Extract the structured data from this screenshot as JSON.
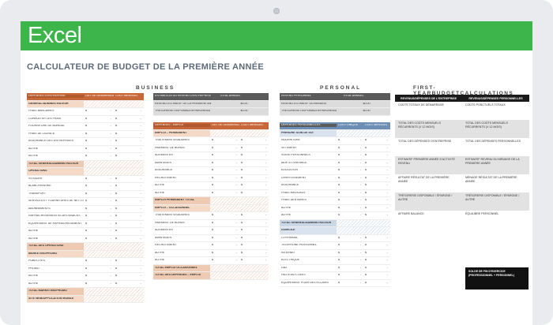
{
  "app": {
    "name": "Excel"
  },
  "sheet": {
    "title": "CALCULATEUR DE BUDGET DE LA PREMIÈRE ANNÉE",
    "business": "BUSINESS",
    "personal": "PERSONAL",
    "calc": "FIRST-YEARBUDGETCALCULATIONS"
  },
  "business": {
    "headers": [
      "DÉPENSES D'ENTREPRISE",
      "OÛT DE DÉMARRAGE",
      "COÛT MENSUEL"
    ],
    "rows": [
      {
        "t": "sub",
        "label": "GÉNÉRAL/ADMINISTRATEUR"
      },
      {
        "t": "v",
        "label": "FRAIS BANCAIRES"
      },
      {
        "t": "v",
        "label": "CONSULTER LES FRAIS"
      },
      {
        "t": "v",
        "label": "FOURNITURE DE BUREAU"
      },
      {
        "t": "v",
        "label": "FRAIS DE LICENCE"
      },
      {
        "t": "v",
        "label": "ASSURANCE DES ENTREPRISES"
      },
      {
        "t": "v",
        "label": "AUTRE"
      },
      {
        "t": "v",
        "label": "AUTRE"
      },
      {
        "t": "tot",
        "label": "TOTAL GÉNÉRAL/ADMINISTRATEUR"
      },
      {
        "t": "sub",
        "label": "OPÉRATIONS"
      },
      {
        "t": "v",
        "label": "VOYAGER"
      },
      {
        "t": "v",
        "label": "BLANCHISSERIE"
      },
      {
        "t": "v",
        "label": "TRANSPORT"
      },
      {
        "t": "v",
        "label": "SERVICES ET FOURNITURES DE NETTOY"
      },
      {
        "t": "v",
        "label": "ABONNEMENTS"
      },
      {
        "t": "v",
        "label": "RAFRAÎCHISSEMENTS/CAFÉ/SNACKS"
      },
      {
        "t": "v",
        "label": "ÉQUIPEMENT DE RAFRAÎCHISSEMENT"
      },
      {
        "t": "v",
        "label": "AUTRE"
      },
      {
        "t": "v",
        "label": "AUTRE"
      },
      {
        "t": "tot",
        "label": "TOTAL DES OPÉRATIONS"
      },
      {
        "t": "sub",
        "label": "MARKETING/PROMO"
      },
      {
        "t": "v",
        "label": "PUBLICITÉS"
      },
      {
        "t": "v",
        "label": "PROMO"
      },
      {
        "t": "v",
        "label": "AUTRE"
      },
      {
        "t": "v",
        "label": "AUTRE"
      },
      {
        "t": "tot",
        "label": "TOTAL MARKETING/PROMO"
      },
      {
        "t": "sub",
        "label": "SITE WEB/APPLICATION MOBILE"
      }
    ]
  },
  "revenue": {
    "headers": [
      "ESTIMATION DU REVENU D'ENTREPRISE",
      "TOTAL ANNUEL"
    ],
    "rows": [
      [
        "REVENU ESTIMATIF DE LA PREMIÈRE AN",
        "$0.00"
      ],
      [
        "TRÉSORERIE DISPONIBLE/ÉPARGNE/AU",
        "$0.00"
      ]
    ]
  },
  "emploi": {
    "headers": [
      "DÉPENSES - EMPLOI",
      "OÛT DE DÉMARRAG",
      "COÛT MENSUEL"
    ],
    "rows": [
      {
        "t": "sub",
        "label": "EMPLOI – PERMANENT"
      },
      {
        "t": "v",
        "label": "TRAITEMENTS/SALAIRES"
      },
      {
        "t": "v",
        "label": "PAIEMENT DE BONUS"
      },
      {
        "t": "v",
        "label": "AUGMENTER"
      },
      {
        "t": "v",
        "label": "AVANTAGES"
      },
      {
        "t": "v",
        "label": "ASSURANCE"
      },
      {
        "t": "v",
        "label": "RECRUTEMENT"
      },
      {
        "t": "v",
        "label": "AUTRE"
      },
      {
        "t": "v",
        "label": "AUTRE"
      },
      {
        "t": "tot",
        "label": "EMPLOI PERMANENT TOTAL"
      },
      {
        "t": "sub",
        "label": "EMPLOI – OCCASIONNEL"
      },
      {
        "t": "v",
        "label": "TRAITEMENTS/SALAIRES"
      },
      {
        "t": "v",
        "label": "PAIEMENT DE BONUS"
      },
      {
        "t": "v",
        "label": "AUGMENTER"
      },
      {
        "t": "v",
        "label": "AVANTAGES"
      },
      {
        "t": "v",
        "label": "RECRUTEMENT"
      },
      {
        "t": "v",
        "label": "AUTRE"
      },
      {
        "t": "v",
        "label": "AUTRE"
      },
      {
        "t": "tot",
        "label": "TOTAL EMPLOI OCCASIONNEL"
      },
      {
        "t": "tot",
        "label": "TOTAL DES DÉPENSES – EMPLOI"
      }
    ]
  },
  "menage": {
    "headers": [
      "REVENU PERSONNEL",
      "TOTAL ANNUEL"
    ],
    "rows": [
      [
        "REVENU ESTIMATIF DU MÉNAGE",
        "$0.00"
      ],
      [
        "TRÉSORERIE DISPONIBLE/ÉPARGNE/AU",
        "$0.00"
      ]
    ]
  },
  "perso": {
    "headers": [
      "DÉPENSES PERSONNELLES",
      "COÛT UNIQUE",
      "COÛT MENSUEL"
    ],
    "rows": [
      {
        "t": "sub",
        "label": "PRENDRE SOIN DE SOI"
      },
      {
        "t": "v",
        "label": "NOURRITURE"
      },
      {
        "t": "v",
        "label": "VÊTEMENT"
      },
      {
        "t": "v",
        "label": "SOINS PERSONNELS"
      },
      {
        "t": "v",
        "label": "AIDE À L'ENFANCE"
      },
      {
        "t": "v",
        "label": "ÉDUCATION"
      },
      {
        "t": "v",
        "label": "DIVERTISSEMENT"
      },
      {
        "t": "v",
        "label": "ASSURANCE"
      },
      {
        "t": "v",
        "label": "FRAIS MÉDICAUX"
      },
      {
        "t": "v",
        "label": "FRAIS DENTAIRES"
      },
      {
        "t": "v",
        "label": "AUTRE"
      },
      {
        "t": "v",
        "label": "AUTRE"
      },
      {
        "t": "tot",
        "label": "TOTAL GÉNÉRAL/ADMINISTRATEUR"
      },
      {
        "t": "sub",
        "label": "DOMICILE"
      },
      {
        "t": "v",
        "label": "LOYER/BAIL"
      },
      {
        "t": "v",
        "label": "TÉLÉPHONE PERSONNEL"
      },
      {
        "t": "v",
        "label": "INTERNET"
      },
      {
        "t": "v",
        "label": "ÉLECTRIQUE"
      },
      {
        "t": "v",
        "label": "GAZ"
      },
      {
        "t": "v",
        "label": "FAUTEUILS LIÉES"
      },
      {
        "t": "v",
        "label": "ÉQUIPEMENT POUR DES ÉCLAIRS"
      }
    ]
  },
  "calc": {
    "headers": [
      "REVENUS/DÉPENSES DE L'ENTREPRISE",
      "REVENUS/DÉPENSES PERSONNELLES"
    ],
    "rows": [
      [
        "COÛTS TOTAUX DE DÉMARRAGE",
        "COÛTS PONCTUELS TOTAUX"
      ],
      [
        "TOTAL DES COÛTS MENSUELS RÉCURRENTS (X 12 MOIS)",
        "TOTAL DES COÛTS MENSUELS RÉCURRENTS (X 12 MOIS)"
      ],
      [
        "TOTAL DES DÉPENSES D'ENTREPRISE",
        "TOTAL DES DÉPENSES PERSONNELLES"
      ],
      [
        "ESTIMATIF PREMIÈRE ANNÉE D'ACTIVITÉ REVENU",
        "ESTIMATIF REVENU DU MÉNAGE DE LA PREMIÈRE ANNÉE"
      ],
      [
        "AFFAIRE RÉSULTAT DE LA PREMIÈRE ANNÉE",
        "MÉNAGE RÉSULTAT DE LA PREMIÈRE ANNÉE"
      ],
      [
        "TRÉSORERIE DISPONIBLE / ÉPARGNE / AUTRE",
        "TRÉSORERIE DISPONIBLE / ÉPARGNE / AUTRE"
      ],
      [
        "AFFAIRE BALANCE",
        "ÉQUILIBRE PERSONNEL"
      ]
    ],
    "final": "SOLDE DE FIN D'EXERCICE (PROFESSIONNEL + PERSONNEL)"
  },
  "cell": {
    "dollar": "$",
    "dash": "-"
  }
}
